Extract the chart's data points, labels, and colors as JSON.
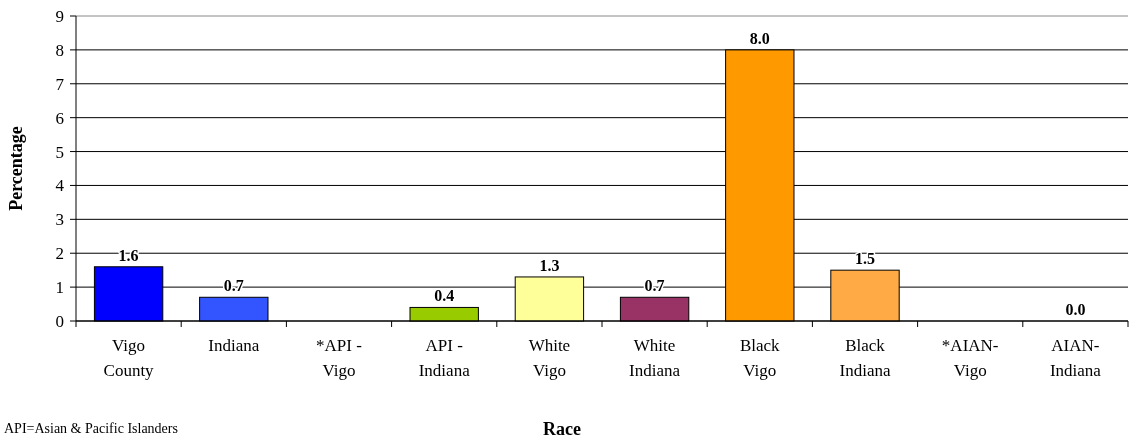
{
  "chart_data": {
    "type": "bar",
    "xlabel": "Race",
    "ylabel": "Percentage",
    "categories": [
      "Vigo County",
      "Indiana",
      "*API - Vigo",
      "API - Indiana",
      "White Vigo",
      "White Indiana",
      "Black Vigo",
      "Black Indiana",
      "*AIAN-Vigo",
      "AIAN-Indiana"
    ],
    "values": [
      1.6,
      0.7,
      null,
      0.4,
      1.3,
      0.7,
      8.0,
      1.5,
      null,
      0.0
    ],
    "value_labels": [
      "1.6",
      "0.7",
      null,
      "0.4",
      "1.3",
      "0.7",
      "8.0",
      "1.5",
      null,
      "0.0"
    ],
    "colors": [
      "#0000ff",
      "#3355ff",
      null,
      "#99cc00",
      "#ffff99",
      "#993366",
      "#ff9900",
      "#ffaa44",
      null,
      "#999999"
    ],
    "ylim": [
      0,
      9
    ],
    "yticks": [
      0,
      1,
      2,
      3,
      4,
      5,
      6,
      7,
      8,
      9
    ],
    "grid": "y",
    "annotations": [
      "API=Asian & Pacific Islanders"
    ]
  }
}
